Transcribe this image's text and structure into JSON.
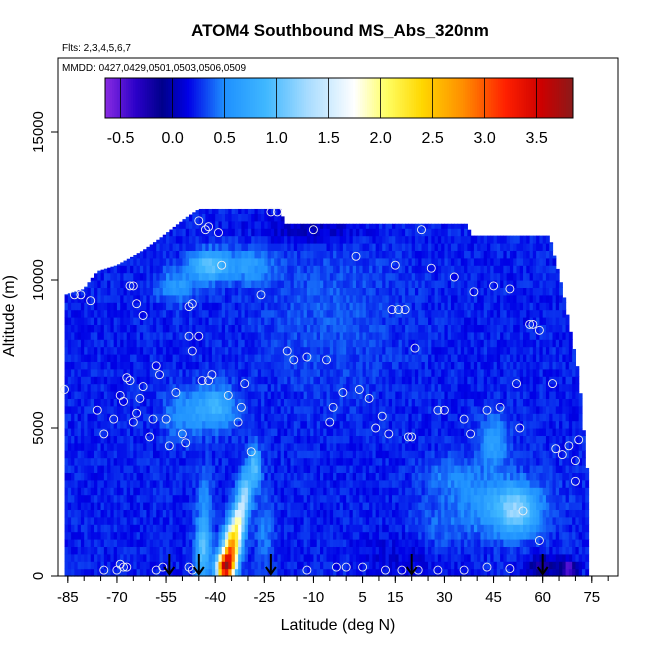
{
  "chart_data": {
    "type": "heatmap",
    "title": "ATOM4 Southbound MS_Abs_320nm",
    "flights_note": "Flts: 2,3,4,5,6,7",
    "dates_note": "MMDD: 0427,0429,0501,0503,0506,0509",
    "xlabel": "Latitude (deg N)",
    "ylabel": "Altitude (m)",
    "xlim": [
      -88,
      83
    ],
    "ylim": [
      0,
      17500
    ],
    "x_ticks": [
      -85,
      -70,
      -55,
      -40,
      -25,
      -10,
      5,
      15,
      30,
      45,
      60,
      75
    ],
    "x_tick_labels": [
      "-85",
      "-70",
      "-55",
      "-40",
      "-25",
      "-10",
      "5",
      "15",
      "30",
      "45",
      "60",
      "75"
    ],
    "x_minor_ticks": [
      -85,
      -80,
      -75,
      -70,
      -65,
      -60,
      -55,
      -50,
      -45,
      -40,
      -35,
      -30,
      -25,
      -20,
      -15,
      -10,
      -5,
      0,
      5,
      10,
      15,
      20,
      25,
      30,
      35,
      40,
      45,
      50,
      55,
      60,
      65,
      70,
      75,
      80
    ],
    "y_ticks": [
      0,
      5000,
      10000,
      15000
    ],
    "y_tick_labels": [
      "0",
      "5000",
      "10000",
      "15000"
    ],
    "colorbar": {
      "range": [
        -0.65,
        3.85
      ],
      "tick_values": [
        -0.5,
        0.0,
        0.5,
        1.0,
        1.5,
        2.0,
        2.5,
        3.0,
        3.5
      ],
      "tick_labels": [
        "-0.5",
        "0.0",
        "0.5",
        "1.0",
        "1.5",
        "2.0",
        "2.5",
        "3.0",
        "3.5"
      ],
      "stops": [
        {
          "v": -0.65,
          "c": "#8a2be2"
        },
        {
          "v": -0.35,
          "c": "#2a00c8"
        },
        {
          "v": -0.1,
          "c": "#00008b"
        },
        {
          "v": 0.15,
          "c": "#0000e6"
        },
        {
          "v": 0.5,
          "c": "#1e90ff"
        },
        {
          "v": 0.9,
          "c": "#40b8ff"
        },
        {
          "v": 1.3,
          "c": "#a8dcff"
        },
        {
          "v": 1.75,
          "c": "#ffffff"
        },
        {
          "v": 2.05,
          "c": "#ffff66"
        },
        {
          "v": 2.4,
          "c": "#ffd700"
        },
        {
          "v": 2.8,
          "c": "#ff8c00"
        },
        {
          "v": 3.2,
          "c": "#ff2000"
        },
        {
          "v": 3.55,
          "c": "#cc0000"
        },
        {
          "v": 3.85,
          "c": "#8b1a1a"
        }
      ]
    },
    "coverage": [
      {
        "lat": -86,
        "alt_min": 0,
        "alt_max": 9500
      },
      {
        "lat": -80,
        "alt_min": 0,
        "alt_max": 9700
      },
      {
        "lat": -76,
        "alt_min": 0,
        "alt_max": 10300
      },
      {
        "lat": -70,
        "alt_min": 0,
        "alt_max": 10500
      },
      {
        "lat": -62,
        "alt_min": 0,
        "alt_max": 11000
      },
      {
        "lat": -57,
        "alt_min": 0,
        "alt_max": 11400
      },
      {
        "lat": -49,
        "alt_min": 0,
        "alt_max": 12100
      },
      {
        "lat": -45,
        "alt_min": 0,
        "alt_max": 12400
      },
      {
        "lat": -20,
        "alt_min": 0,
        "alt_max": 12400
      },
      {
        "lat": -19,
        "alt_min": 0,
        "alt_max": 11900
      },
      {
        "lat": 37,
        "alt_min": 0,
        "alt_max": 11900
      },
      {
        "lat": 38,
        "alt_min": 0,
        "alt_max": 11500
      },
      {
        "lat": 62,
        "alt_min": 0,
        "alt_max": 11500
      },
      {
        "lat": 66,
        "alt_min": 0,
        "alt_max": 9700
      },
      {
        "lat": 71,
        "alt_min": 0,
        "alt_max": 6800
      },
      {
        "lat": 73,
        "alt_min": 0,
        "alt_max": 4300
      },
      {
        "lat": 74,
        "alt_min": 0,
        "alt_max": 3000
      },
      {
        "lat": 74,
        "alt_min": 0,
        "alt_max": 0
      }
    ],
    "background_value": 0.22,
    "features": [
      {
        "lat": -37,
        "alt": 300,
        "sigma_lat": 1.8,
        "sigma_alt": 350,
        "value": 3.5
      },
      {
        "lat": -35,
        "alt": 1000,
        "sigma_lat": 1.6,
        "sigma_alt": 500,
        "value": 2.6
      },
      {
        "lat": -33,
        "alt": 1800,
        "sigma_lat": 1.3,
        "sigma_alt": 500,
        "value": 1.6
      },
      {
        "lat": -31,
        "alt": 2700,
        "sigma_lat": 1.3,
        "sigma_alt": 550,
        "value": 1.3
      },
      {
        "lat": -28,
        "alt": 3700,
        "sigma_lat": 1.3,
        "sigma_alt": 500,
        "value": 1.0
      },
      {
        "lat": -44,
        "alt": 800,
        "sigma_lat": 1.5,
        "sigma_alt": 700,
        "value": 0.9
      },
      {
        "lat": -43,
        "alt": 2200,
        "sigma_lat": 1.6,
        "sigma_alt": 900,
        "value": 0.55
      },
      {
        "lat": -42,
        "alt": 10500,
        "sigma_lat": 4.0,
        "sigma_alt": 350,
        "value": 1.0
      },
      {
        "lat": -40,
        "alt": 5700,
        "sigma_lat": 4.0,
        "sigma_alt": 500,
        "value": 0.85
      },
      {
        "lat": -50,
        "alt": 5500,
        "sigma_lat": 4.0,
        "sigma_alt": 600,
        "value": 0.55
      },
      {
        "lat": -52,
        "alt": 9800,
        "sigma_lat": 4.0,
        "sigma_alt": 400,
        "value": 0.6
      },
      {
        "lat": -30,
        "alt": 10500,
        "sigma_lat": 5.0,
        "sigma_alt": 400,
        "value": 0.6
      },
      {
        "lat": -25,
        "alt": 1500,
        "sigma_lat": 2.0,
        "sigma_alt": 900,
        "value": 0.45
      },
      {
        "lat": 48,
        "alt": 2400,
        "sigma_lat": 9.0,
        "sigma_alt": 700,
        "value": 0.7
      },
      {
        "lat": 52,
        "alt": 2200,
        "sigma_lat": 4.0,
        "sigma_alt": 500,
        "value": 0.85
      },
      {
        "lat": 45,
        "alt": 4600,
        "sigma_lat": 3.0,
        "sigma_alt": 600,
        "value": 0.65
      },
      {
        "lat": 32,
        "alt": 3400,
        "sigma_lat": 6.0,
        "sigma_alt": 500,
        "value": 0.45
      },
      {
        "lat": 28,
        "alt": 1500,
        "sigma_lat": 6.0,
        "sigma_alt": 700,
        "value": 0.38
      },
      {
        "lat": -5,
        "alt": 9000,
        "sigma_lat": 15.0,
        "sigma_alt": 2000,
        "value": 0.35
      },
      {
        "lat": 60,
        "alt": 300,
        "sigma_lat": 3.0,
        "sigma_alt": 250,
        "value": -0.25
      },
      {
        "lat": 68,
        "alt": 250,
        "sigma_lat": 1.5,
        "sigma_alt": 200,
        "value": -0.6
      },
      {
        "lat": -10,
        "alt": 11800,
        "sigma_lat": 12.0,
        "sigma_alt": 400,
        "value": 0.0
      },
      {
        "lat": 20,
        "alt": 700,
        "sigma_lat": 10.0,
        "sigma_alt": 500,
        "value": 0.1
      }
    ],
    "sample_points": [
      [
        -86,
        6300
      ],
      [
        -83,
        9500
      ],
      [
        -81,
        9500
      ],
      [
        -78,
        9300
      ],
      [
        -76,
        5600
      ],
      [
        -74,
        4800
      ],
      [
        -74,
        200
      ],
      [
        -71,
        5300
      ],
      [
        -70,
        200
      ],
      [
        -69,
        400
      ],
      [
        -68,
        300
      ],
      [
        -67,
        300
      ],
      [
        -69,
        6100
      ],
      [
        -68,
        5900
      ],
      [
        -67,
        6700
      ],
      [
        -66,
        6600
      ],
      [
        -65,
        5200
      ],
      [
        -64,
        5500
      ],
      [
        -66,
        9800
      ],
      [
        -65,
        9800
      ],
      [
        -64,
        9200
      ],
      [
        -62,
        8800
      ],
      [
        -63,
        6000
      ],
      [
        -62,
        6400
      ],
      [
        -60,
        4700
      ],
      [
        -59,
        5300
      ],
      [
        -58,
        7100
      ],
      [
        -57,
        6800
      ],
      [
        -58,
        200
      ],
      [
        -56,
        300
      ],
      [
        -55,
        5300
      ],
      [
        -54,
        4400
      ],
      [
        -52,
        6200
      ],
      [
        -50,
        4800
      ],
      [
        -49,
        4500
      ],
      [
        -48,
        300
      ],
      [
        -47,
        200
      ],
      [
        -47,
        7600
      ],
      [
        -48,
        8100
      ],
      [
        -48,
        9100
      ],
      [
        -47,
        9200
      ],
      [
        -45,
        8100
      ],
      [
        -44,
        6600
      ],
      [
        -42,
        6600
      ],
      [
        -41,
        6800
      ],
      [
        -39,
        11600
      ],
      [
        -38,
        10500
      ],
      [
        -36,
        6100
      ],
      [
        -33,
        5200
      ],
      [
        -32,
        5700
      ],
      [
        -31,
        6500
      ],
      [
        -29,
        4200
      ],
      [
        -26,
        9500
      ],
      [
        -23,
        12300
      ],
      [
        -21,
        12300
      ],
      [
        -18,
        7600
      ],
      [
        -16,
        7300
      ],
      [
        -12,
        7400
      ],
      [
        -10,
        11700
      ],
      [
        -6,
        7300
      ],
      [
        -5,
        5200
      ],
      [
        -4,
        5700
      ],
      [
        -3,
        300
      ],
      [
        -1,
        6200
      ],
      [
        3,
        10800
      ],
      [
        4,
        6300
      ],
      [
        7,
        6000
      ],
      [
        9,
        5000
      ],
      [
        11,
        5400
      ],
      [
        13,
        4800
      ],
      [
        14,
        9000
      ],
      [
        15,
        10500
      ],
      [
        16,
        9000
      ],
      [
        18,
        9000
      ],
      [
        19,
        4700
      ],
      [
        20,
        4700
      ],
      [
        21,
        7700
      ],
      [
        23,
        11700
      ],
      [
        26,
        10400
      ],
      [
        28,
        5600
      ],
      [
        30,
        5600
      ],
      [
        33,
        10100
      ],
      [
        36,
        5300
      ],
      [
        38,
        4800
      ],
      [
        39,
        9600
      ],
      [
        43,
        5600
      ],
      [
        45,
        9800
      ],
      [
        47,
        5700
      ],
      [
        50,
        9700
      ],
      [
        52,
        6500
      ],
      [
        53,
        5000
      ],
      [
        56,
        8500
      ],
      [
        57,
        8500
      ],
      [
        59,
        8300
      ],
      [
        59,
        1200
      ],
      [
        63,
        6500
      ],
      [
        64,
        4300
      ],
      [
        66,
        4100
      ],
      [
        68,
        4400
      ],
      [
        70,
        3900
      ],
      [
        70,
        3200
      ],
      [
        71,
        4600
      ],
      [
        -45,
        12000
      ],
      [
        -43,
        11700
      ],
      [
        -42,
        11800
      ],
      [
        -12,
        200
      ],
      [
        0,
        300
      ],
      [
        5,
        300
      ],
      [
        12,
        200
      ],
      [
        17,
        200
      ],
      [
        22,
        200
      ],
      [
        28,
        200
      ],
      [
        36,
        200
      ],
      [
        43,
        300
      ],
      [
        50,
        250
      ],
      [
        54,
        2200
      ]
    ],
    "flight_arrows_lat": [
      -54,
      -45,
      -23,
      20,
      60
    ]
  }
}
